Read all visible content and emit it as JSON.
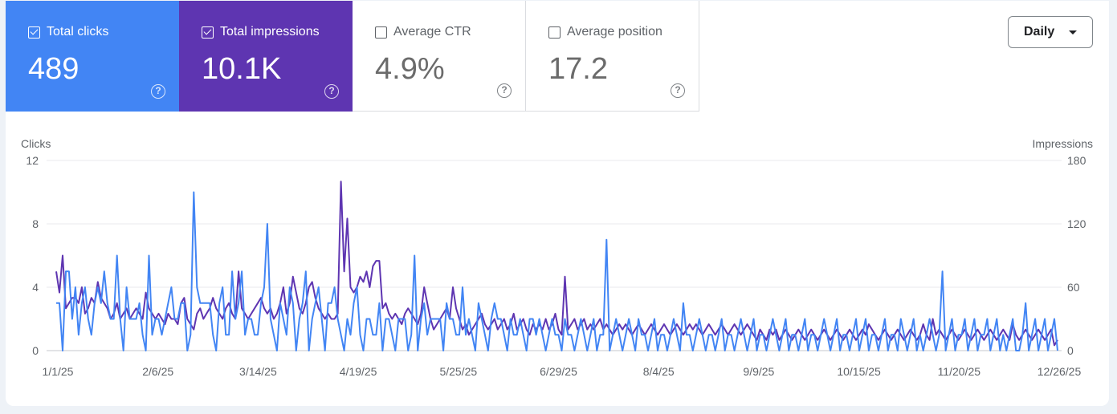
{
  "metrics": [
    {
      "label": "Total clicks",
      "value": "489",
      "checked": true
    },
    {
      "label": "Total impressions",
      "value": "10.1K",
      "checked": true
    },
    {
      "label": "Average CTR",
      "value": "4.9%",
      "checked": false
    },
    {
      "label": "Average position",
      "value": "17.2",
      "checked": false
    }
  ],
  "help_glyph": "?",
  "granularity": {
    "label": "Daily"
  },
  "colors": {
    "clicks": "#4285f4",
    "impressions": "#5e35b1",
    "grid": "#e8eaed",
    "axis_text": "#5f6368"
  },
  "chart_data": {
    "type": "line",
    "left_axis_label": "Clicks",
    "right_axis_label": "Impressions",
    "left_ylim": [
      0,
      12
    ],
    "right_ylim": [
      0,
      180
    ],
    "left_ticks": [
      "12",
      "8",
      "4",
      "0"
    ],
    "right_ticks": [
      "180",
      "120",
      "60",
      "0"
    ],
    "x_tick_labels": [
      "1/1/25",
      "2/6/25",
      "3/14/25",
      "4/19/25",
      "5/25/25",
      "6/29/25",
      "8/4/25",
      "9/9/25",
      "10/15/25",
      "11/20/25",
      "12/26/25"
    ],
    "x_start": "2025-01-01",
    "x_end": "2025-12-31",
    "grid": true,
    "series": [
      {
        "name": "Clicks",
        "axis": "left",
        "values": [
          3,
          3,
          0,
          5,
          5,
          2,
          4,
          1,
          3,
          4,
          2,
          1,
          3,
          4,
          3,
          5,
          3,
          2,
          2,
          6,
          2,
          0,
          4,
          2,
          2,
          2,
          3,
          1,
          0,
          6,
          1,
          2,
          2,
          1,
          2,
          3,
          4,
          2,
          2,
          3,
          3,
          0,
          1,
          10,
          4,
          3,
          3,
          3,
          3,
          1,
          0,
          3,
          4,
          1,
          1,
          5,
          2,
          3,
          5,
          1,
          2,
          2,
          1,
          1,
          3,
          4,
          8,
          2,
          1,
          0,
          3,
          2,
          1,
          4,
          3,
          0,
          2,
          3,
          5,
          0,
          2,
          3,
          4,
          2,
          0,
          3,
          3,
          4,
          2,
          1,
          0,
          2,
          1,
          3,
          4,
          1,
          0,
          2,
          2,
          1,
          1,
          3,
          0,
          2,
          2,
          1,
          0,
          2,
          2,
          2,
          0,
          1,
          6,
          0,
          2,
          3,
          1,
          2,
          2,
          2,
          2,
          0,
          3,
          2,
          2,
          1,
          1,
          4,
          1,
          2,
          1,
          0,
          3,
          2,
          1,
          0,
          2,
          3,
          2,
          2,
          1,
          0,
          2,
          1,
          1,
          2,
          1,
          0,
          2,
          2,
          1,
          2,
          1,
          0,
          1,
          2,
          1,
          1,
          0,
          2,
          1,
          1,
          0,
          1,
          2,
          1,
          0,
          1,
          2,
          0,
          1,
          1,
          7,
          0,
          1,
          2,
          1,
          0,
          1,
          2,
          1,
          0,
          2,
          1,
          1,
          0,
          1,
          2,
          0,
          1,
          1,
          0,
          1,
          2,
          1,
          0,
          3,
          1,
          1,
          0,
          1,
          2,
          1,
          0,
          1,
          1,
          0,
          1,
          2,
          0,
          1,
          1,
          0,
          1,
          2,
          1,
          0,
          1,
          2,
          0,
          1,
          1,
          0,
          1,
          2,
          1,
          0,
          1,
          2,
          0,
          1,
          1,
          0,
          1,
          2,
          0,
          1,
          1,
          0,
          1,
          2,
          1,
          0,
          1,
          2,
          0,
          1,
          1,
          0,
          1,
          2,
          0,
          1,
          2,
          0,
          1,
          1,
          0,
          1,
          2,
          0,
          1,
          1,
          0,
          2,
          1,
          0,
          1,
          2,
          0,
          1,
          0,
          1,
          2,
          1,
          0,
          1,
          5,
          0,
          1,
          2,
          0,
          1,
          1,
          2,
          0,
          1,
          2,
          0,
          1,
          1,
          2,
          0,
          1,
          2,
          0,
          1,
          0,
          1,
          2,
          0,
          0,
          1,
          3,
          0,
          1,
          2,
          0,
          1,
          2,
          0,
          1,
          2,
          0
        ]
      },
      {
        "name": "Impressions",
        "axis": "right",
        "values": [
          75,
          55,
          90,
          40,
          45,
          50,
          50,
          45,
          60,
          35,
          40,
          50,
          45,
          65,
          50,
          45,
          40,
          30,
          35,
          45,
          30,
          35,
          40,
          30,
          35,
          40,
          35,
          30,
          55,
          40,
          35,
          30,
          35,
          30,
          25,
          35,
          30,
          30,
          25,
          45,
          50,
          30,
          25,
          20,
          35,
          40,
          30,
          35,
          40,
          50,
          40,
          35,
          30,
          40,
          45,
          35,
          30,
          75,
          40,
          35,
          30,
          35,
          40,
          45,
          50,
          40,
          35,
          40,
          30,
          35,
          45,
          60,
          35,
          45,
          70,
          55,
          40,
          35,
          45,
          60,
          65,
          50,
          40,
          35,
          30,
          35,
          30,
          30,
          35,
          160,
          75,
          125,
          60,
          55,
          60,
          70,
          65,
          75,
          60,
          80,
          85,
          85,
          40,
          45,
          35,
          30,
          35,
          30,
          25,
          35,
          40,
          35,
          30,
          25,
          35,
          60,
          45,
          30,
          20,
          25,
          30,
          35,
          40,
          30,
          60,
          40,
          30,
          20,
          25,
          15,
          20,
          25,
          30,
          35,
          25,
          20,
          25,
          30,
          20,
          25,
          30,
          20,
          25,
          35,
          20,
          25,
          30,
          20,
          15,
          25,
          20,
          25,
          20,
          30,
          20,
          25,
          35,
          20,
          15,
          70,
          20,
          25,
          30,
          20,
          25,
          30,
          20,
          25,
          20,
          25,
          30,
          20,
          25,
          20,
          15,
          20,
          25,
          20,
          25,
          20,
          15,
          20,
          25,
          20,
          15,
          20,
          25,
          20,
          15,
          20,
          25,
          20,
          15,
          20,
          25,
          20,
          15,
          20,
          25,
          20,
          25,
          20,
          15,
          20,
          25,
          20,
          15,
          20,
          25,
          20,
          15,
          20,
          25,
          20,
          15,
          20,
          25,
          20,
          15,
          10,
          20,
          15,
          10,
          20,
          15,
          20,
          10,
          15,
          20,
          15,
          10,
          15,
          20,
          15,
          10,
          15,
          20,
          15,
          10,
          15,
          20,
          15,
          10,
          15,
          20,
          15,
          10,
          15,
          20,
          15,
          10,
          15,
          20,
          15,
          25,
          20,
          15,
          10,
          15,
          20,
          15,
          10,
          15,
          20,
          15,
          10,
          15,
          20,
          15,
          10,
          15,
          25,
          15,
          10,
          30,
          15,
          20,
          15,
          10,
          15,
          20,
          15,
          10,
          15,
          20,
          15,
          10,
          15,
          20,
          15,
          10,
          15,
          20,
          15,
          10,
          15,
          20,
          15,
          10,
          25,
          15,
          10,
          15,
          20,
          15,
          10,
          15,
          20,
          15,
          10,
          15,
          20,
          5,
          10
        ]
      }
    ]
  }
}
